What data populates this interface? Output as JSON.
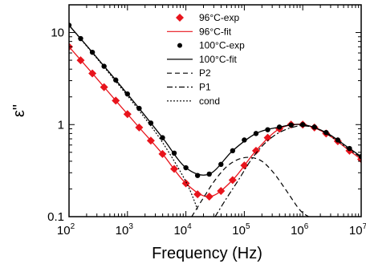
{
  "chart_data": {
    "type": "line",
    "xlabel": "Frequency (Hz)",
    "ylabel": "ε\"",
    "x_scale": "log",
    "y_scale": "log",
    "xlim": [
      100,
      10000000
    ],
    "ylim": [
      0.1,
      20
    ],
    "grid": false,
    "legend_position": "top-right",
    "x_ticks": [
      {
        "base": "10",
        "exp": "2",
        "value": 100
      },
      {
        "base": "10",
        "exp": "3",
        "value": 1000
      },
      {
        "base": "10",
        "exp": "4",
        "value": 10000
      },
      {
        "base": "10",
        "exp": "5",
        "value": 100000
      },
      {
        "base": "10",
        "exp": "6",
        "value": 1000000
      },
      {
        "base": "10",
        "exp": "7",
        "value": 10000000
      }
    ],
    "y_ticks": [
      {
        "label": "0.1",
        "value": 0.1
      },
      {
        "label": "1",
        "value": 1
      },
      {
        "label": "10",
        "value": 10
      }
    ],
    "series": [
      {
        "name": "96°C-exp",
        "style": "markers",
        "marker": "diamond",
        "color": "#e8141c",
        "x": [
          100,
          158,
          251,
          398,
          631,
          1000,
          1585,
          2512,
          3981,
          6310,
          10000,
          15849,
          25119,
          39811,
          63096,
          100000,
          158489,
          251189,
          398107,
          630957,
          1000000,
          1584893,
          2511886,
          3981072,
          6309573,
          10000000
        ],
        "y": [
          7.0,
          5.0,
          3.6,
          2.55,
          1.82,
          1.3,
          0.93,
          0.67,
          0.48,
          0.33,
          0.23,
          0.175,
          0.165,
          0.19,
          0.25,
          0.36,
          0.52,
          0.72,
          0.9,
          1.0,
          1.0,
          0.93,
          0.8,
          0.66,
          0.52,
          0.42
        ]
      },
      {
        "name": "96°C-fit",
        "style": "line",
        "color": "#e8141c",
        "x": [
          100,
          251,
          631,
          1585,
          3981,
          10000,
          25119,
          63096,
          158489,
          398107,
          1000000,
          2511886,
          6309573,
          10000000
        ],
        "y": [
          7.0,
          3.6,
          1.82,
          0.93,
          0.48,
          0.23,
          0.165,
          0.25,
          0.52,
          0.9,
          1.0,
          0.8,
          0.52,
          0.42
        ]
      },
      {
        "name": "100°C-exp",
        "style": "markers",
        "marker": "circle",
        "color": "#000000",
        "x": [
          100,
          158,
          251,
          398,
          631,
          1000,
          1585,
          2512,
          3981,
          6310,
          10000,
          15849,
          25119,
          39811,
          63096,
          100000,
          158489,
          251189,
          398107,
          630957,
          1000000,
          1584893,
          2511886,
          3981072,
          6309573,
          10000000
        ],
        "y": [
          12.0,
          8.6,
          6.1,
          4.3,
          3.05,
          2.15,
          1.5,
          1.04,
          0.72,
          0.49,
          0.34,
          0.28,
          0.29,
          0.37,
          0.52,
          0.68,
          0.8,
          0.88,
          0.94,
          0.99,
          1.0,
          0.94,
          0.82,
          0.68,
          0.55,
          0.45
        ]
      },
      {
        "name": "100°C-fit",
        "style": "line",
        "color": "#000000",
        "x": [
          100,
          251,
          631,
          1585,
          3981,
          10000,
          25119,
          63096,
          158489,
          398107,
          1000000,
          2511886,
          6309573,
          10000000
        ],
        "y": [
          12.0,
          6.1,
          3.05,
          1.5,
          0.72,
          0.34,
          0.29,
          0.52,
          0.8,
          0.94,
          1.0,
          0.82,
          0.55,
          0.45
        ]
      },
      {
        "name": "P2",
        "style": "dash",
        "color": "#000000",
        "x": [
          12589,
          19953,
          31623,
          50119,
          79433,
          125893,
          199526,
          316228,
          501187,
          794328,
          1000000,
          1258925
        ],
        "y": [
          0.1,
          0.16,
          0.25,
          0.35,
          0.42,
          0.44,
          0.4,
          0.3,
          0.2,
          0.13,
          0.11,
          0.1
        ]
      },
      {
        "name": "P1",
        "style": "dashdot",
        "color": "#000000",
        "x": [
          31623,
          50119,
          79433,
          125893,
          199526,
          316228,
          501187,
          794328,
          1000000,
          1584893,
          2511886,
          3981072,
          6309573,
          10000000
        ],
        "y": [
          0.1,
          0.16,
          0.25,
          0.4,
          0.58,
          0.75,
          0.88,
          0.96,
          0.97,
          0.93,
          0.8,
          0.66,
          0.53,
          0.44
        ]
      },
      {
        "name": "cond",
        "style": "dot",
        "color": "#000000",
        "x": [
          100,
          251,
          631,
          1585,
          3981,
          10000,
          15849
        ],
        "y": [
          12.0,
          6.0,
          2.95,
          1.42,
          0.64,
          0.24,
          0.12
        ]
      }
    ]
  }
}
